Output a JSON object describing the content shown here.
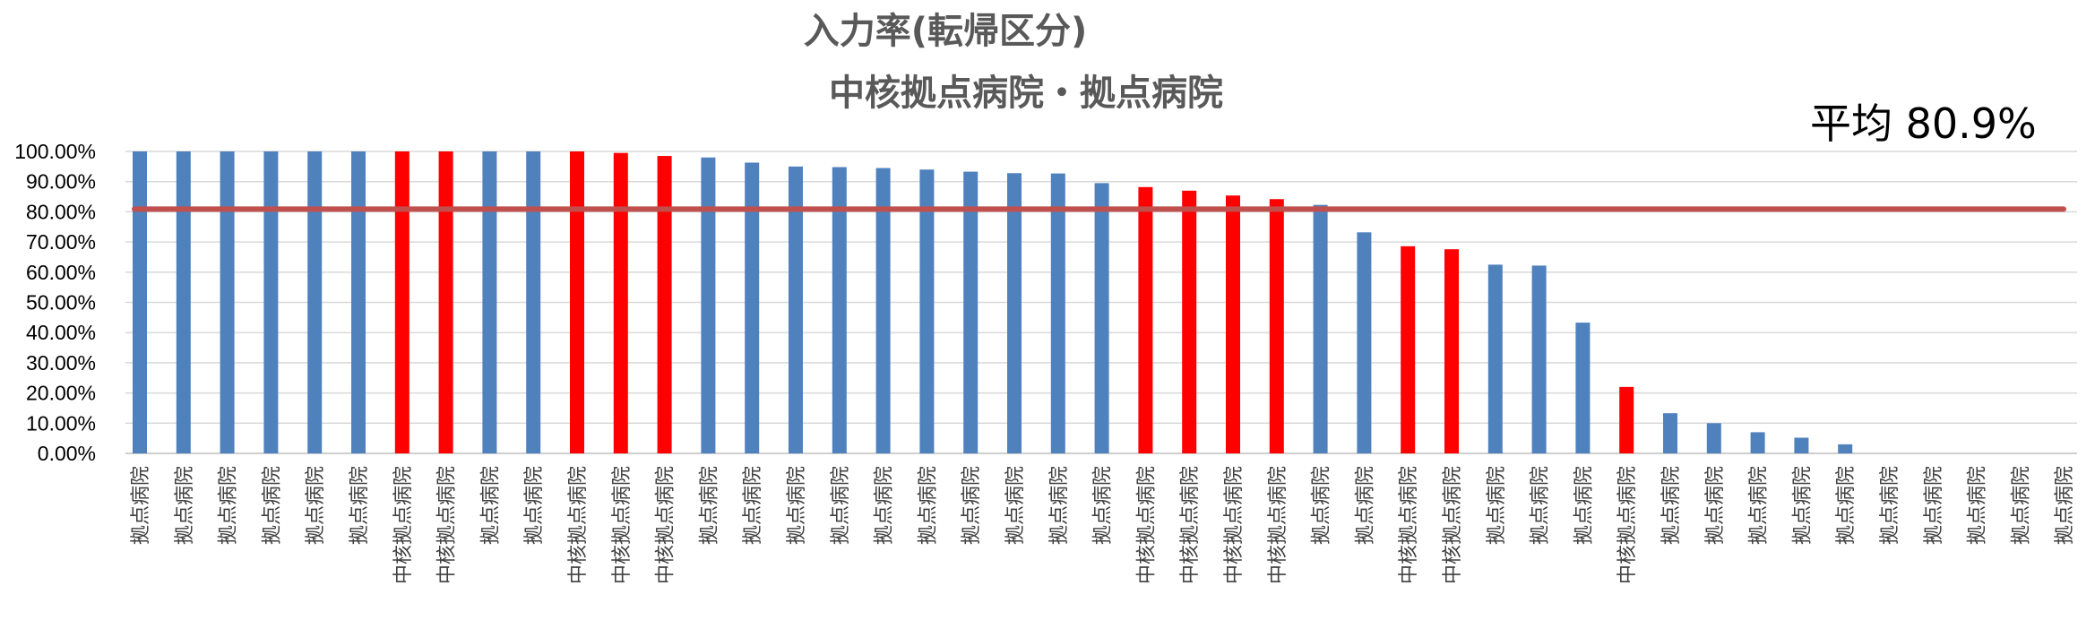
{
  "chart_data": {
    "type": "bar",
    "title": "入力率(転帰区分)",
    "subtitle": "中核拠点病院・拠点病院",
    "average_label": "平均 80.9%",
    "average_value": 80.9,
    "ylim": [
      0,
      100
    ],
    "yticks": [
      "0.00%",
      "10.00%",
      "20.00%",
      "30.00%",
      "40.00%",
      "50.00%",
      "60.00%",
      "70.00%",
      "80.00%",
      "90.00%",
      "100.00%"
    ],
    "grid": true,
    "colors": {
      "拠点病院": "#4f81bd",
      "中核拠点病院": "#ff0000",
      "average_line": "#c0504d"
    },
    "categories": [
      "拠点病院",
      "拠点病院",
      "拠点病院",
      "拠点病院",
      "拠点病院",
      "拠点病院",
      "中核拠点病院",
      "中核拠点病院",
      "拠点病院",
      "拠点病院",
      "中核拠点病院",
      "中核拠点病院",
      "中核拠点病院",
      "拠点病院",
      "拠点病院",
      "拠点病院",
      "拠点病院",
      "拠点病院",
      "拠点病院",
      "拠点病院",
      "拠点病院",
      "拠点病院",
      "拠点病院",
      "中核拠点病院",
      "中核拠点病院",
      "中核拠点病院",
      "中核拠点病院",
      "拠点病院",
      "拠点病院",
      "中核拠点病院",
      "中核拠点病院",
      "拠点病院",
      "拠点病院",
      "拠点病院",
      "中核拠点病院",
      "拠点病院",
      "拠点病院",
      "拠点病院",
      "拠点病院",
      "拠点病院",
      "拠点病院",
      "拠点病院",
      "拠点病院",
      "拠点病院",
      "拠点病院"
    ],
    "values": [
      100,
      100,
      100,
      100,
      100,
      100,
      100,
      100,
      100,
      100,
      100,
      99.5,
      98.5,
      98,
      96.3,
      95,
      94.8,
      94.5,
      94,
      93.3,
      92.8,
      92.7,
      89.5,
      88.2,
      87,
      85.4,
      84.2,
      82.3,
      73.2,
      68.6,
      67.6,
      62.5,
      62.2,
      43.3,
      22,
      13.3,
      10,
      7,
      5.2,
      3,
      0,
      0,
      0,
      0,
      0
    ]
  }
}
